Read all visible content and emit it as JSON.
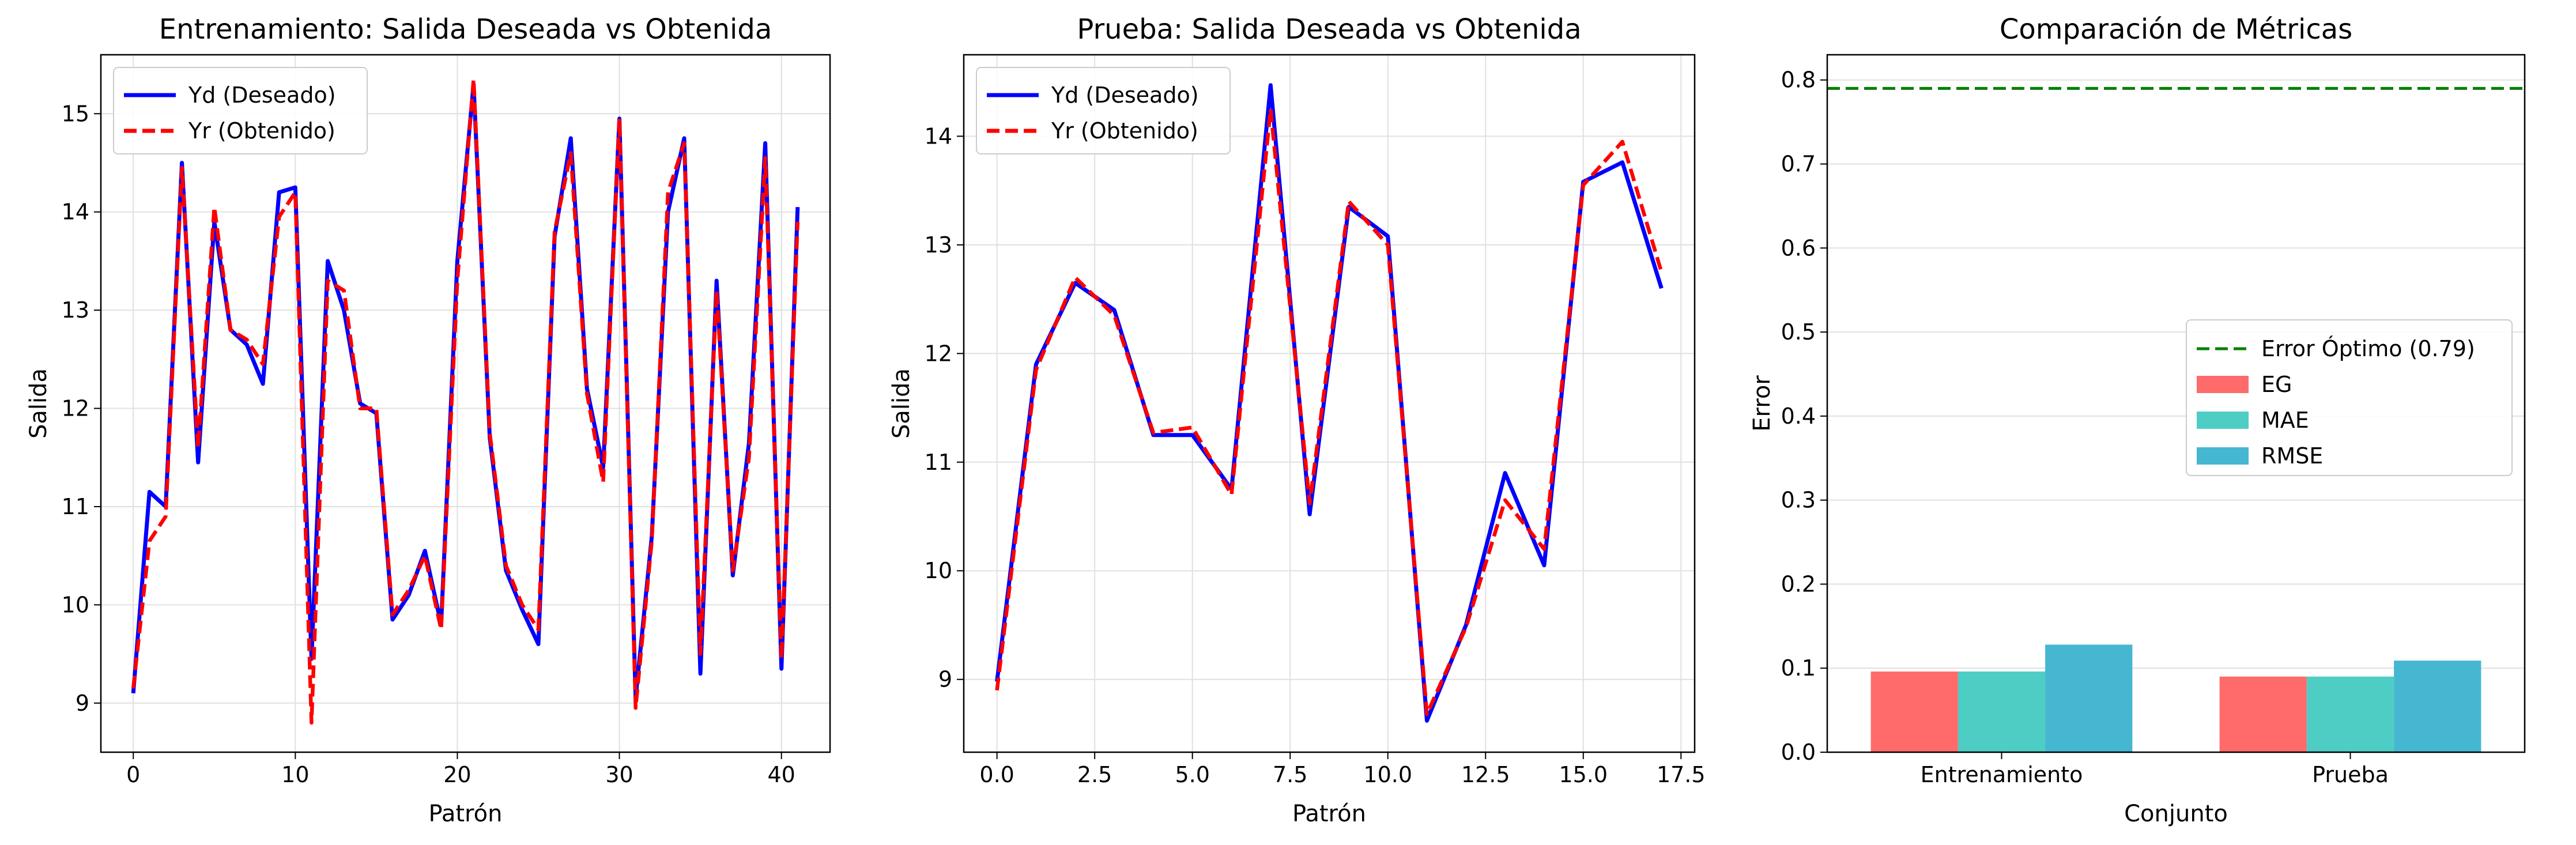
{
  "chart_data": [
    {
      "type": "line",
      "title": "Entrenamiento: Salida Deseada vs Obtenida",
      "xlabel": "Patrón",
      "ylabel": "Salida",
      "xlim": [
        -2,
        43
      ],
      "ylim": [
        8.5,
        15.6
      ],
      "xticks": [
        "0",
        "10",
        "20",
        "30",
        "40"
      ],
      "yticks": [
        "9",
        "10",
        "11",
        "12",
        "13",
        "14",
        "15"
      ],
      "grid": true,
      "legend": "top-left",
      "x": [
        0,
        1,
        2,
        3,
        4,
        5,
        6,
        7,
        8,
        9,
        10,
        11,
        12,
        13,
        14,
        15,
        16,
        17,
        18,
        19,
        20,
        21,
        22,
        23,
        24,
        25,
        26,
        27,
        28,
        29,
        30,
        31,
        32,
        33,
        34,
        35,
        36,
        37,
        38,
        39,
        40,
        41
      ],
      "series": [
        {
          "name": "Yd (Deseado)",
          "color": "#0000ff",
          "style": "solid",
          "values": [
            9.1,
            11.15,
            11.0,
            14.5,
            11.45,
            13.9,
            12.8,
            12.65,
            12.25,
            14.2,
            14.25,
            9.45,
            13.5,
            13.0,
            12.05,
            11.95,
            9.85,
            10.1,
            10.55,
            9.8,
            13.5,
            15.3,
            11.7,
            10.35,
            9.95,
            9.6,
            13.75,
            14.75,
            12.2,
            11.4,
            14.95,
            9.05,
            10.7,
            14.0,
            14.75,
            9.3,
            13.3,
            10.3,
            11.65,
            14.7,
            9.35,
            14.05
          ]
        },
        {
          "name": "Yr (Obtenido)",
          "color": "#ff0000",
          "style": "dashed",
          "values": [
            9.15,
            10.65,
            10.9,
            14.45,
            11.6,
            14.05,
            12.8,
            12.7,
            12.45,
            13.95,
            14.2,
            8.8,
            13.3,
            13.2,
            12.0,
            12.0,
            9.9,
            10.15,
            10.5,
            9.75,
            13.3,
            15.35,
            11.75,
            10.4,
            10.0,
            9.75,
            13.8,
            14.6,
            12.15,
            11.25,
            14.95,
            8.95,
            10.65,
            14.2,
            14.7,
            9.5,
            13.2,
            10.35,
            11.5,
            14.55,
            9.45,
            13.9
          ]
        }
      ]
    },
    {
      "type": "line",
      "title": "Prueba: Salida Deseada vs Obtenida",
      "xlabel": "Patrón",
      "ylabel": "Salida",
      "xlim": [
        -0.85,
        17.85
      ],
      "ylim": [
        8.33,
        14.75
      ],
      "xticks": [
        "0.0",
        "2.5",
        "5.0",
        "7.5",
        "10.0",
        "12.5",
        "15.0",
        "17.5"
      ],
      "yticks": [
        "9",
        "10",
        "11",
        "12",
        "13",
        "14"
      ],
      "grid": true,
      "legend": "top-left",
      "x": [
        0,
        1,
        2,
        3,
        4,
        5,
        6,
        7,
        8,
        9,
        10,
        11,
        12,
        13,
        14,
        15,
        16,
        17
      ],
      "series": [
        {
          "name": "Yd (Deseado)",
          "color": "#0000ff",
          "style": "solid",
          "values": [
            8.98,
            11.9,
            12.65,
            12.4,
            11.25,
            11.25,
            10.75,
            14.47,
            10.52,
            13.35,
            13.08,
            8.62,
            9.5,
            10.9,
            10.05,
            13.58,
            13.76,
            12.6
          ]
        },
        {
          "name": "Yr (Obtenido)",
          "color": "#ff0000",
          "style": "dashed",
          "values": [
            8.9,
            11.85,
            12.7,
            12.35,
            11.27,
            11.32,
            10.7,
            14.25,
            10.62,
            13.4,
            13.0,
            8.68,
            9.48,
            10.65,
            10.2,
            13.55,
            13.95,
            12.75
          ]
        }
      ]
    },
    {
      "type": "bar",
      "title": "Comparación de Métricas",
      "xlabel": "Conjunto",
      "ylabel": "Error",
      "ylim": [
        0,
        0.83
      ],
      "yticks": [
        "0.0",
        "0.1",
        "0.2",
        "0.3",
        "0.4",
        "0.5",
        "0.6",
        "0.7",
        "0.8"
      ],
      "grid": true,
      "legend": "center-right",
      "categories": [
        "Entrenamiento",
        "Prueba"
      ],
      "series": [
        {
          "name": "EG",
          "color": "#ff6b6b",
          "values": [
            0.096,
            0.09
          ]
        },
        {
          "name": "MAE",
          "color": "#4ecdc4",
          "values": [
            0.096,
            0.09
          ]
        },
        {
          "name": "RMSE",
          "color": "#45b7d1",
          "values": [
            0.128,
            0.109
          ]
        }
      ],
      "reference_line": {
        "name": "Error Óptimo (0.79)",
        "value": 0.79,
        "color": "#008000",
        "style": "dashed"
      }
    }
  ]
}
